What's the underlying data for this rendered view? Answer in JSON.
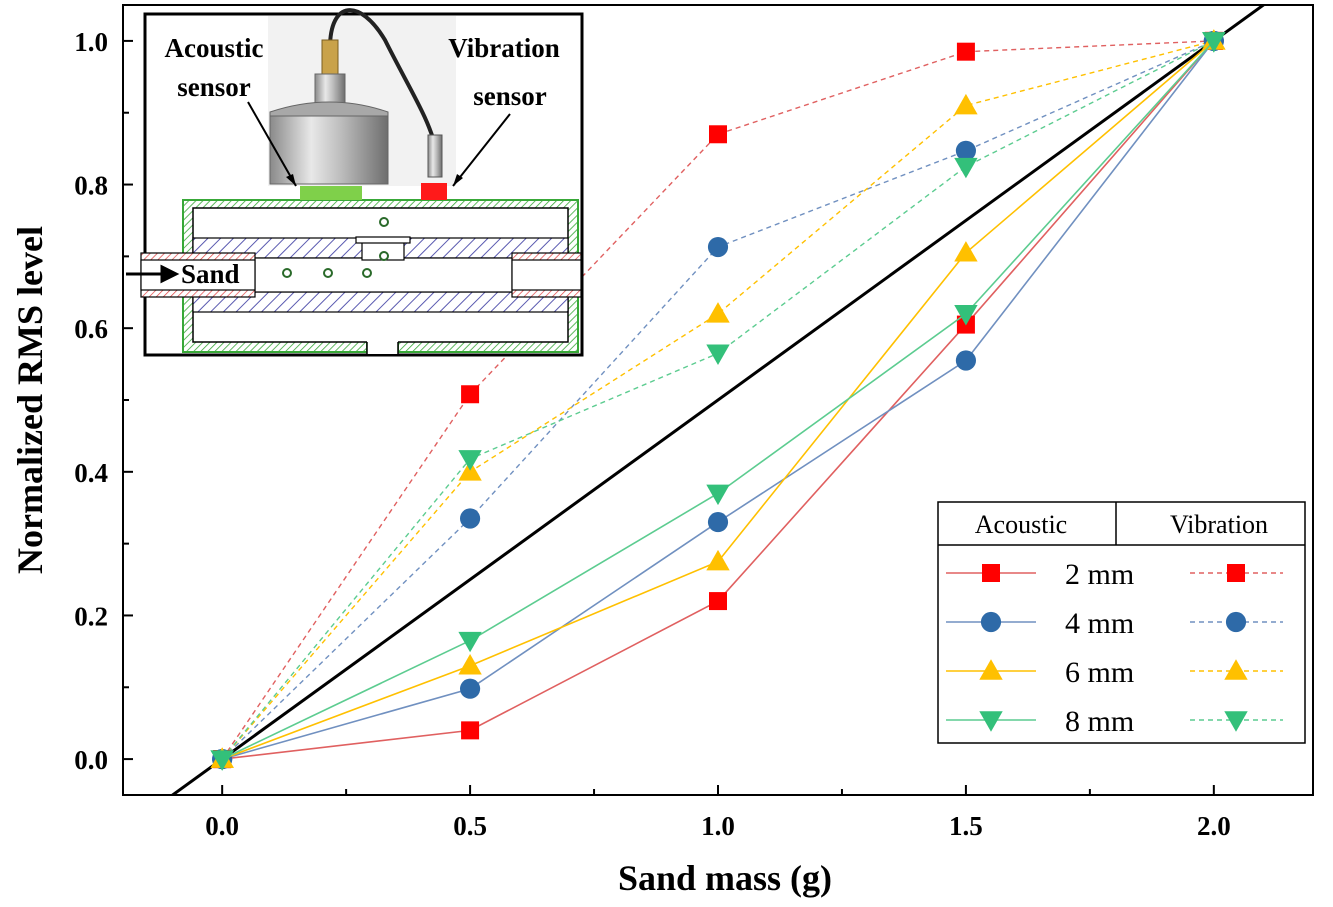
{
  "chart_data": {
    "type": "line",
    "xlabel": "Sand mass (g)",
    "ylabel": "Normalized RMS level",
    "xlim": [
      -0.2,
      2.2
    ],
    "ylim": [
      -0.05,
      1.05
    ],
    "x_ticks": [
      "0.0",
      "0.5",
      "1.0",
      "1.5",
      "2.0"
    ],
    "y_ticks": [
      "0.0",
      "0.2",
      "0.4",
      "0.6",
      "0.8",
      "1.0"
    ],
    "x": [
      0,
      0.5,
      1.0,
      1.5,
      2.0
    ],
    "reference_line": {
      "x": [
        -0.2,
        2.2
      ],
      "y": [
        -0.1,
        1.1
      ],
      "color": "#000000"
    },
    "series": [
      {
        "group": "acoustic",
        "name": "2 mm",
        "color": "#ff0000",
        "stroke": "#e06060",
        "marker": "square",
        "dashed": false,
        "values": [
          0,
          0.04,
          0.22,
          0.605,
          1.0
        ]
      },
      {
        "group": "acoustic",
        "name": "4 mm",
        "color": "#2e6aa8",
        "stroke": "#7090c0",
        "marker": "circle",
        "dashed": false,
        "values": [
          0,
          0.098,
          0.33,
          0.555,
          1.0
        ]
      },
      {
        "group": "acoustic",
        "name": "6 mm",
        "color": "#ffc000",
        "stroke": "#ffc000",
        "marker": "triangle-up",
        "dashed": false,
        "values": [
          0,
          0.13,
          0.275,
          0.705,
          1.0
        ]
      },
      {
        "group": "acoustic",
        "name": "8 mm",
        "color": "#33c07a",
        "stroke": "#5ccc90",
        "marker": "triangle-down",
        "dashed": false,
        "values": [
          0,
          0.165,
          0.37,
          0.62,
          1.0
        ]
      },
      {
        "group": "vibration",
        "name": "2 mm",
        "color": "#ff0000",
        "stroke": "#e06060",
        "marker": "square",
        "dashed": true,
        "values": [
          0,
          0.508,
          0.87,
          0.985,
          1.0
        ]
      },
      {
        "group": "vibration",
        "name": "4 mm",
        "color": "#2e6aa8",
        "stroke": "#7090c0",
        "marker": "circle",
        "dashed": true,
        "values": [
          0,
          0.335,
          0.713,
          0.847,
          1.0
        ]
      },
      {
        "group": "vibration",
        "name": "6 mm",
        "color": "#ffc000",
        "stroke": "#ffc000",
        "marker": "triangle-up",
        "dashed": true,
        "values": [
          0,
          0.4,
          0.62,
          0.91,
          1.0
        ]
      },
      {
        "group": "vibration",
        "name": "8 mm",
        "color": "#33c07a",
        "stroke": "#5ccc90",
        "marker": "triangle-down",
        "dashed": true,
        "values": [
          0,
          0.418,
          0.565,
          0.825,
          1.0
        ]
      }
    ],
    "legend": {
      "position": "bottom-right",
      "header_acoustic": "Acoustic",
      "header_vibration": "Vibration",
      "entries": [
        "2 mm",
        "4 mm",
        "6 mm",
        "8 mm"
      ]
    },
    "inset": {
      "position": "top-left",
      "labels": {
        "acoustic_sensor_line1": "Acoustic",
        "acoustic_sensor_line2": "sensor",
        "vibration_sensor_line1": "Vibration",
        "vibration_sensor_line2": "sensor",
        "sand": "Sand"
      },
      "colors": {
        "acoustic_sensor": "#7fd04a",
        "vibration_sensor": "#ff1a1a",
        "housing": "#38a838",
        "hatch": "#5a5ab0"
      }
    }
  }
}
